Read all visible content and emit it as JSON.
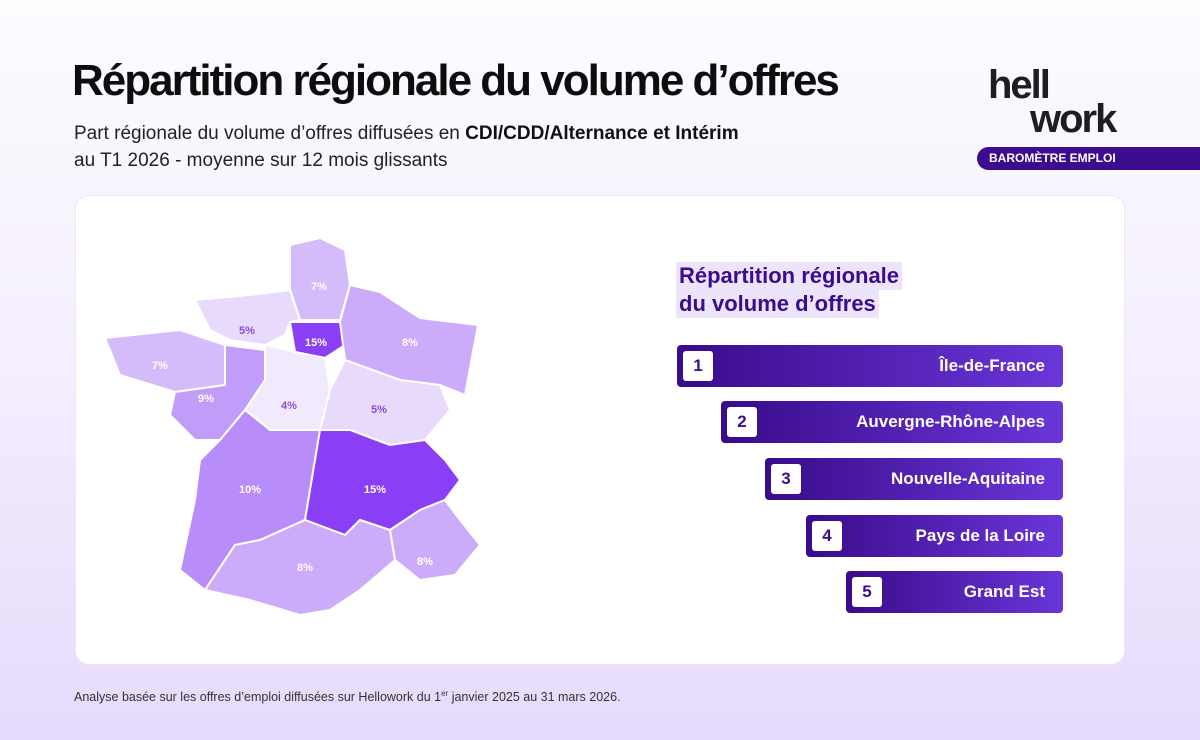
{
  "header": {
    "title": "Répartition régionale du volume d’offres",
    "subtitle_start": "Part régionale du volume d’offres diffusées en ",
    "subtitle_bold": "CDI/CDD/Alternance et Intérim",
    "subtitle_end": "au T1 2026 - moyenne sur 12 mois glissants"
  },
  "logo": {
    "top": "hell",
    "bottom": "work",
    "tag": "BAROMÈTRE EMPLOI"
  },
  "map": {
    "values": [
      7,
      5,
      15,
      8,
      7,
      9,
      4,
      5,
      10,
      15,
      8,
      8
    ],
    "value_labels": [
      "7%",
      "5%",
      "15%",
      "8%",
      "7%",
      "9%",
      "4%",
      "5%",
      "10%",
      "15%",
      "8%",
      "8%"
    ]
  },
  "ranking": {
    "title_lines": [
      "Répartition régionale",
      "du volume d’offres"
    ],
    "items": [
      {
        "rank": 1,
        "name": "Île-de-France"
      },
      {
        "rank": 2,
        "name": "Auvergne-Rhône-Alpes"
      },
      {
        "rank": 3,
        "name": "Nouvelle-Aquitaine"
      },
      {
        "rank": 4,
        "name": "Pays de la Loire"
      },
      {
        "rank": 5,
        "name": "Grand Est"
      }
    ]
  },
  "footer": {
    "text_start": "Analyse basée sur les offres d’emploi diffusées sur Hellowork du 1",
    "superscript": "er",
    "text_end": " janvier 2025 au 31 mars 2026."
  }
}
